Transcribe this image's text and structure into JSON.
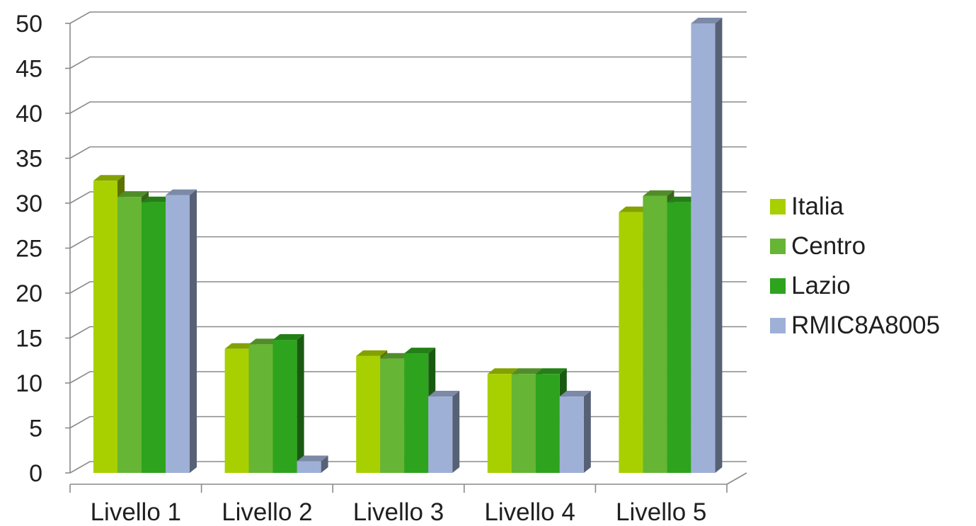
{
  "chart_data": {
    "type": "bar",
    "title": "",
    "xlabel": "",
    "ylabel": "",
    "categories": [
      "Livello 1",
      "Livello 2",
      "Livello 3",
      "Livello 4",
      "Livello 5"
    ],
    "series": [
      {
        "name": "Italia",
        "color": "#a8d000",
        "values": [
          32.5,
          13.8,
          13.0,
          11.0,
          29.0
        ]
      },
      {
        "name": "Centro",
        "color": "#66b534",
        "values": [
          30.7,
          14.3,
          12.7,
          11.0,
          30.8
        ]
      },
      {
        "name": "Lazio",
        "color": "#2ea31e",
        "values": [
          30.1,
          14.8,
          13.3,
          11.0,
          30.1
        ]
      },
      {
        "name": "RMIC8A8005",
        "color": "#9fb0d6",
        "values": [
          30.9,
          1.3,
          8.5,
          8.5,
          50.0
        ]
      }
    ],
    "yticks": [
      "0",
      "5",
      "10",
      "15",
      "20",
      "25",
      "30",
      "35",
      "40",
      "45",
      "50"
    ],
    "ylim": [
      0,
      50
    ],
    "grid": true,
    "legend": "right"
  }
}
